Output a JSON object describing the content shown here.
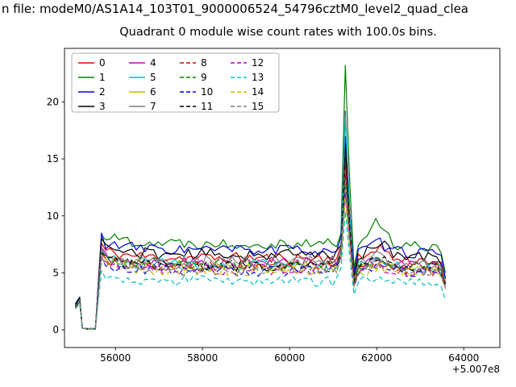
{
  "header": {
    "file_line": "n file: modeM0/AS1A14_103T01_9000006524_54796cztM0_level2_quad_clea"
  },
  "chart_data": {
    "type": "line",
    "title": "Quadrant 0 module wise count rates with 100.0s bins.",
    "xlabel": "",
    "ylabel": "",
    "x_offset_label": "+5.007e8",
    "xlim": [
      54830,
      64830
    ],
    "ylim": [
      -1.55,
      24.7
    ],
    "xticks": [
      56000,
      58000,
      60000,
      62000,
      64000
    ],
    "yticks": [
      0,
      5,
      10,
      15,
      20
    ],
    "grid": false,
    "legend_position": "upper left",
    "legend_columns": 4,
    "bin_seconds": 100,
    "shape": {
      "start_x": 55080,
      "initial_bump_end": 55240,
      "zero_until": 55580,
      "rise_x": 55680,
      "flare_peak_x": 61280,
      "post_flare_dip_x": 61480,
      "secondary_bump_x": 62030,
      "end_x": 63580
    },
    "series": [
      {
        "label": "0",
        "color": "#e00000",
        "linestyle": "solid",
        "base": 6.3,
        "start_bump": 2.7,
        "overshoot": 7.6,
        "flare_peak": 15.0,
        "bump_62k": 1.2,
        "end": 4.1,
        "seed": 11
      },
      {
        "label": "1",
        "color": "#008000",
        "linestyle": "solid",
        "base": 7.6,
        "start_bump": 2.9,
        "overshoot": 8.3,
        "flare_peak": 23.2,
        "bump_62k": 2.1,
        "end": 5.0,
        "seed": 22
      },
      {
        "label": "2",
        "color": "#0000e0",
        "linestyle": "solid",
        "base": 7.0,
        "start_bump": 2.8,
        "overshoot": 8.5,
        "flare_peak": 17.0,
        "bump_62k": 0.8,
        "end": 4.5,
        "seed": 33
      },
      {
        "label": "3",
        "color": "#000000",
        "linestyle": "solid",
        "base": 6.6,
        "start_bump": 2.7,
        "overshoot": 8.0,
        "flare_peak": 16.3,
        "bump_62k": 1.3,
        "end": 4.2,
        "seed": 44
      },
      {
        "label": "4",
        "color": "#bf00bf",
        "linestyle": "solid",
        "base": 5.9,
        "start_bump": 2.6,
        "overshoot": 7.2,
        "flare_peak": 19.2,
        "bump_62k": 0.6,
        "end": 4.0,
        "seed": 55
      },
      {
        "label": "5",
        "color": "#00bfbf",
        "linestyle": "solid",
        "base": 5.7,
        "start_bump": 2.6,
        "overshoot": 7.0,
        "flare_peak": 18.8,
        "bump_62k": 0.5,
        "end": 4.3,
        "seed": 66
      },
      {
        "label": "6",
        "color": "#bfbf00",
        "linestyle": "solid",
        "base": 5.6,
        "start_bump": 2.5,
        "overshoot": 6.8,
        "flare_peak": 13.0,
        "bump_62k": 0.5,
        "end": 4.0,
        "seed": 77
      },
      {
        "label": "7",
        "color": "#7f7f7f",
        "linestyle": "solid",
        "base": 6.0,
        "start_bump": 2.6,
        "overshoot": 7.1,
        "flare_peak": 14.2,
        "bump_62k": 0.7,
        "end": 4.2,
        "seed": 88
      },
      {
        "label": "8",
        "color": "#e00000",
        "linestyle": "dashed",
        "base": 5.5,
        "start_bump": 2.5,
        "overshoot": 6.6,
        "flare_peak": 14.5,
        "bump_62k": 0.6,
        "end": 3.9,
        "seed": 99
      },
      {
        "label": "9",
        "color": "#008000",
        "linestyle": "dashed",
        "base": 5.7,
        "start_bump": 2.5,
        "overshoot": 6.8,
        "flare_peak": 13.5,
        "bump_62k": 0.7,
        "end": 4.0,
        "seed": 110
      },
      {
        "label": "10",
        "color": "#0000e0",
        "linestyle": "dashed",
        "base": 5.2,
        "start_bump": 2.4,
        "overshoot": 6.3,
        "flare_peak": 12.5,
        "bump_62k": 0.5,
        "end": 3.6,
        "seed": 121
      },
      {
        "label": "11",
        "color": "#000000",
        "linestyle": "dashed",
        "base": 5.6,
        "start_bump": 2.5,
        "overshoot": 6.7,
        "flare_peak": 16.0,
        "bump_62k": 0.8,
        "end": 4.0,
        "seed": 132
      },
      {
        "label": "12",
        "color": "#bf00bf",
        "linestyle": "dashed",
        "base": 5.3,
        "start_bump": 2.4,
        "overshoot": 6.4,
        "flare_peak": 12.0,
        "bump_62k": 0.5,
        "end": 3.7,
        "seed": 143
      },
      {
        "label": "13",
        "color": "#00bfbf",
        "linestyle": "dashed",
        "base": 4.3,
        "start_bump": 2.3,
        "overshoot": 5.2,
        "flare_peak": 10.4,
        "bump_62k": 0.3,
        "end": 2.6,
        "seed": 154
      },
      {
        "label": "14",
        "color": "#bfbf00",
        "linestyle": "dashed",
        "base": 5.2,
        "start_bump": 2.4,
        "overshoot": 6.2,
        "flare_peak": 11.5,
        "bump_62k": 0.5,
        "end": 3.6,
        "seed": 165
      },
      {
        "label": "15",
        "color": "#7f7f7f",
        "linestyle": "dashed",
        "base": 5.4,
        "start_bump": 2.4,
        "overshoot": 6.5,
        "flare_peak": 13.0,
        "bump_62k": 0.6,
        "end": 3.8,
        "seed": 176
      }
    ]
  }
}
